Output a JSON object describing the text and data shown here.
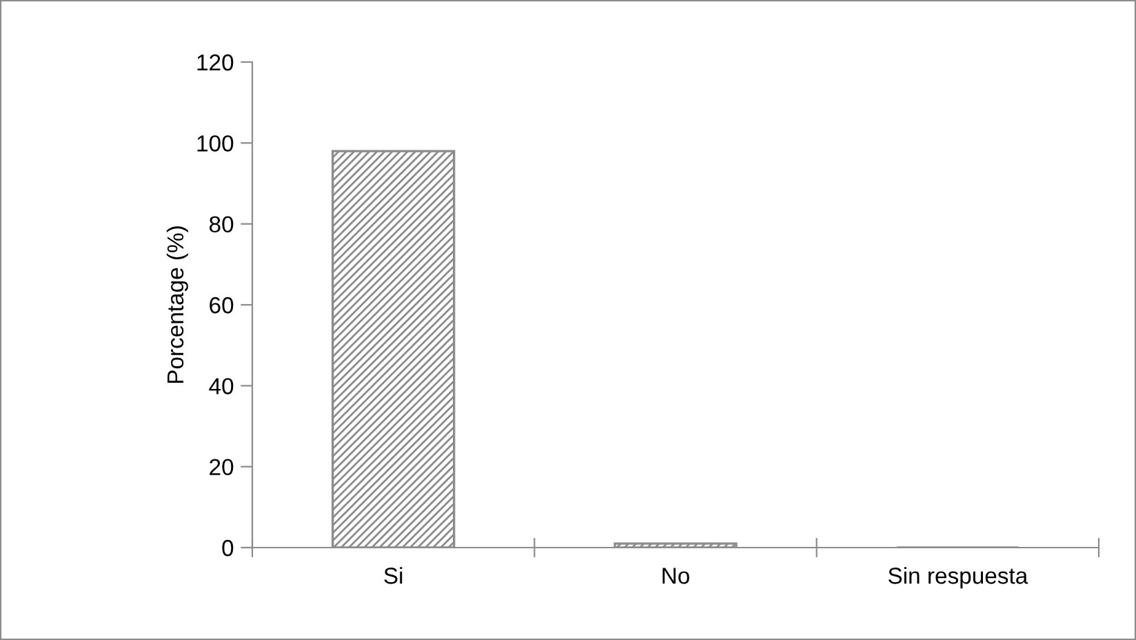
{
  "chart_data": {
    "type": "bar",
    "ylabel": "Porcentage (%)",
    "categories": [
      "Si",
      "No",
      "Sin respuesta"
    ],
    "values": [
      98,
      1,
      0
    ],
    "color": "#8c8c8c",
    "ylim": [
      0,
      120
    ],
    "yticks": [
      0,
      20,
      40,
      60,
      80,
      100,
      120
    ],
    "grid": false
  }
}
